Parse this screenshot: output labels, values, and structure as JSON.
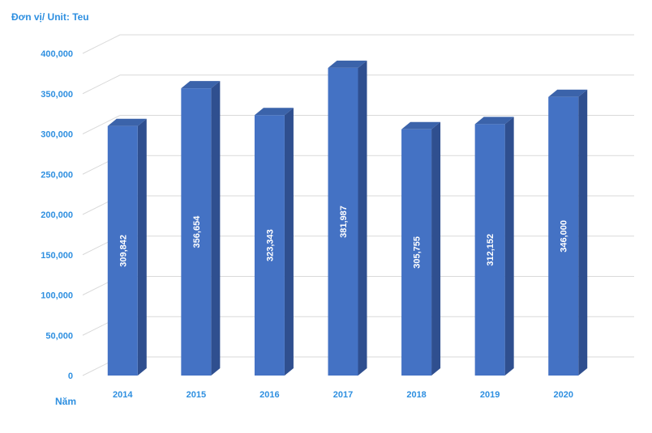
{
  "chart_data": {
    "type": "bar",
    "unit_label": "Đơn vị/ Unit: Teu",
    "xlabel": "Năm",
    "ylabel": "",
    "categories": [
      "2014",
      "2015",
      "2016",
      "2017",
      "2018",
      "2019",
      "2020"
    ],
    "series": [
      {
        "values": [
          309842,
          356654,
          323343,
          381987,
          305755,
          312152,
          346000
        ]
      }
    ],
    "data_labels": [
      "309,842",
      "356,654",
      "323,343",
      "381,987",
      "305,755",
      "312,152",
      "346,000"
    ],
    "y_ticks": [
      "0",
      "50,000",
      "100,000",
      "150,000",
      "200,000",
      "250,000",
      "300,000",
      "350,000",
      "400,000"
    ],
    "ylim": [
      0,
      400000
    ],
    "grid": true,
    "style": "3d-column",
    "colors": {
      "bar_front": "#4472c4",
      "bar_side": "#2f4f8f",
      "bar_top": "#3b63aa",
      "text": "#2e8fe0",
      "grid": "#d9d9d9"
    }
  }
}
